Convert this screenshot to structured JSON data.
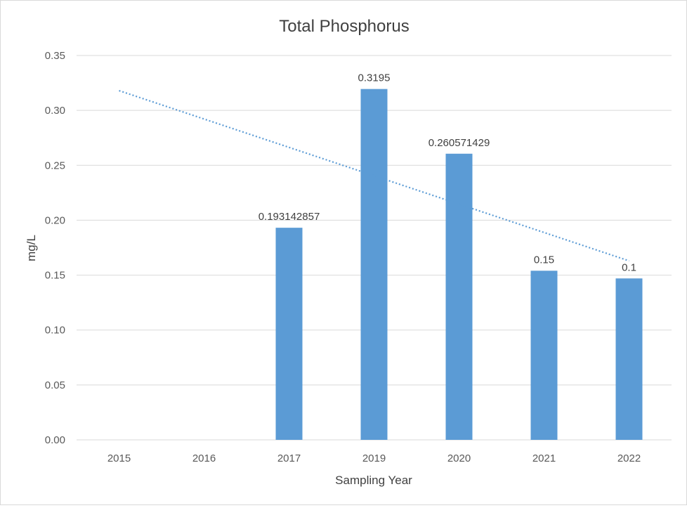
{
  "chart_data": {
    "type": "bar",
    "title": "Total Phosphorus",
    "xlabel": "Sampling Year",
    "ylabel": "mg/L",
    "categories": [
      "2015",
      "2016",
      "2017",
      "2019",
      "2020",
      "2021",
      "2022"
    ],
    "values": [
      null,
      null,
      0.193142857,
      0.3195,
      0.260571429,
      0.154,
      0.147
    ],
    "data_labels": [
      "",
      "",
      "0.193142857",
      "0.3195",
      "0.260571429",
      "0.15",
      "0.1"
    ],
    "ylim": [
      0,
      0.35
    ],
    "yticks": [
      "0.00",
      "0.05",
      "0.10",
      "0.15",
      "0.20",
      "0.25",
      "0.30",
      "0.35"
    ],
    "ytick_values": [
      0,
      0.05,
      0.1,
      0.15,
      0.2,
      0.25,
      0.3,
      0.35
    ],
    "trendline": {
      "type": "linear",
      "style": "dotted",
      "start_value": 0.318,
      "end_value": 0.163
    },
    "grid": true,
    "legend": "none",
    "colors": {
      "bar": "#5b9bd5",
      "trend": "#5b9bd5",
      "grid": "#d9d9d9"
    }
  }
}
